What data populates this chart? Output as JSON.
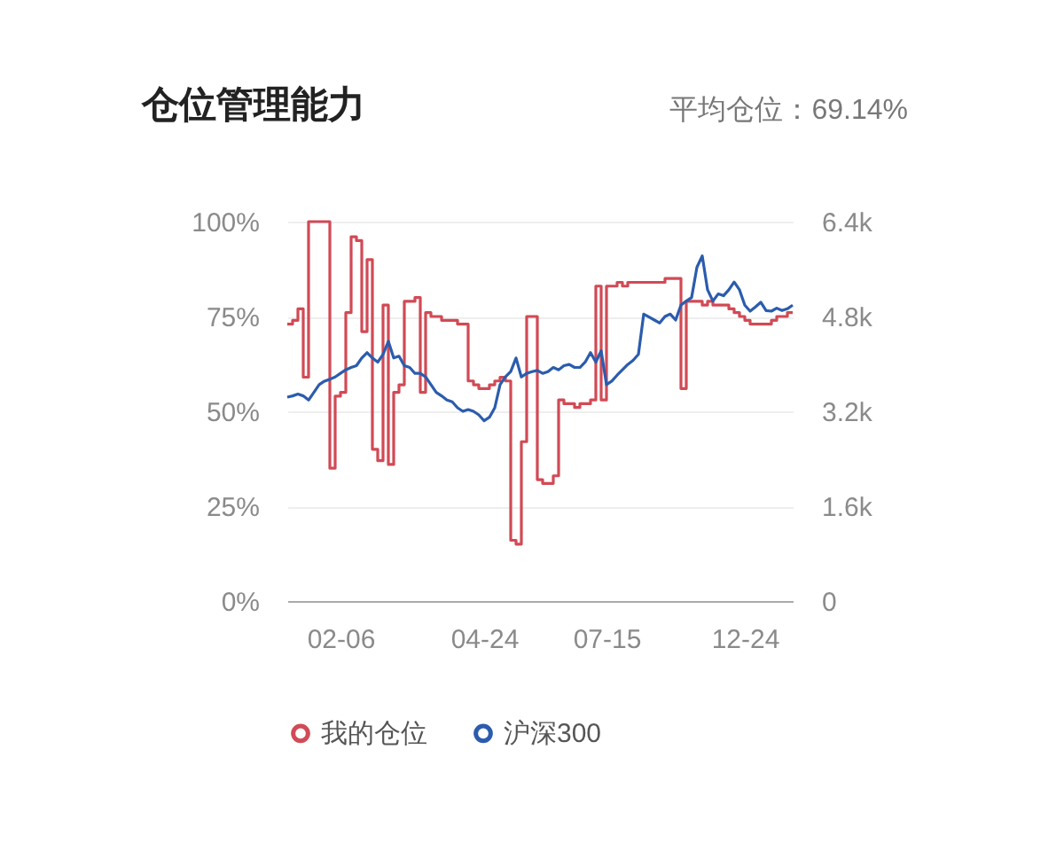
{
  "chart_data": {
    "type": "line",
    "title": "仓位管理能力",
    "subtitle": "平均仓位：69.14%",
    "categories": [
      null,
      null,
      null,
      null,
      null,
      null,
      null,
      null,
      null,
      null,
      "02-06",
      null,
      null,
      null,
      null,
      null,
      null,
      null,
      null,
      null,
      null,
      null,
      null,
      null,
      null,
      null,
      null,
      null,
      null,
      null,
      null,
      null,
      null,
      null,
      null,
      null,
      null,
      "04-24",
      null,
      null,
      null,
      null,
      null,
      null,
      null,
      null,
      null,
      null,
      null,
      null,
      null,
      null,
      null,
      null,
      null,
      null,
      null,
      null,
      null,
      null,
      "07-15",
      null,
      null,
      null,
      null,
      null,
      null,
      null,
      null,
      null,
      null,
      null,
      null,
      null,
      null,
      null,
      null,
      null,
      null,
      null,
      null,
      null,
      null,
      null,
      null,
      null,
      "12-24",
      null,
      null,
      null,
      null,
      null,
      null,
      null,
      null,
      null
    ],
    "series": [
      {
        "name": "我的仓位",
        "type": "step",
        "color": "#d14a55",
        "values": [
          73,
          74,
          77,
          59,
          100,
          100,
          100,
          100,
          35,
          54,
          55,
          76,
          96,
          95,
          71,
          90,
          40,
          37,
          78,
          36,
          55,
          57,
          79,
          79,
          80,
          55,
          76,
          75,
          75,
          74,
          74,
          74,
          73,
          73,
          58,
          57,
          56,
          56,
          57,
          58,
          59,
          58,
          16,
          15,
          42,
          75,
          75,
          32,
          31,
          31,
          33,
          53,
          52,
          52,
          51,
          52,
          52,
          53,
          83,
          53,
          83,
          83,
          84,
          83,
          84,
          84,
          84,
          84,
          84,
          84,
          84,
          85,
          85,
          85,
          56,
          79,
          79,
          79,
          78,
          79,
          78,
          78,
          78,
          77,
          76,
          75,
          74,
          73,
          73,
          73,
          73,
          74,
          75,
          75,
          76,
          76
        ]
      },
      {
        "name": "沪深300",
        "axis": "y2",
        "color": "#2b5cad",
        "values": [
          3440,
          3460,
          3490,
          3460,
          3390,
          3520,
          3650,
          3710,
          3740,
          3780,
          3840,
          3900,
          3940,
          3970,
          4100,
          4190,
          4100,
          4030,
          4160,
          4380,
          4100,
          4130,
          3970,
          3940,
          3840,
          3840,
          3780,
          3650,
          3520,
          3460,
          3390,
          3360,
          3260,
          3200,
          3230,
          3200,
          3140,
          3040,
          3100,
          3260,
          3650,
          3780,
          3870,
          4100,
          3780,
          3840,
          3870,
          3890,
          3840,
          3870,
          3940,
          3900,
          3970,
          3990,
          3940,
          3940,
          4030,
          4190,
          4030,
          4220,
          3650,
          3710,
          3810,
          3900,
          3990,
          4060,
          4160,
          4840,
          4790,
          4740,
          4690,
          4800,
          4840,
          4740,
          4990,
          5060,
          5120,
          5630,
          5820,
          5250,
          5060,
          5180,
          5150,
          5250,
          5380,
          5250,
          4990,
          4890,
          4960,
          5040,
          4900,
          4890,
          4940,
          4900,
          4930,
          4990
        ]
      }
    ],
    "ylim": [
      0,
      100
    ],
    "yticks": [
      {
        "value": 0,
        "label": "0%"
      },
      {
        "value": 25,
        "label": "25%"
      },
      {
        "value": 50,
        "label": "50%"
      },
      {
        "value": 75,
        "label": "75%"
      },
      {
        "value": 100,
        "label": "100%"
      }
    ],
    "y2lim": [
      0,
      6400
    ],
    "y2ticks": [
      0,
      {
        "value": 1600,
        "label": "1.6k"
      },
      {
        "value": 3200,
        "label": "3.2k"
      },
      {
        "value": 4800,
        "label": "4.8k"
      },
      {
        "value": 6400,
        "label": "6.4k"
      }
    ],
    "grid": "y",
    "legend": "bottom"
  }
}
